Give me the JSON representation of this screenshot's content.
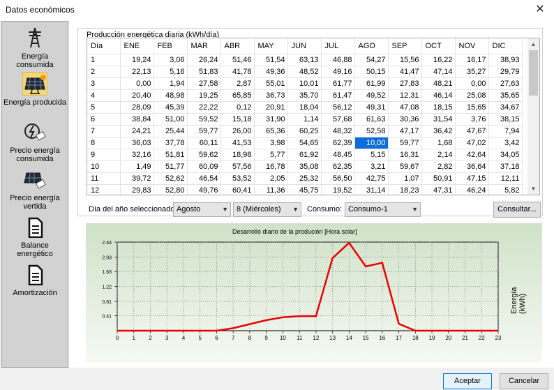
{
  "window": {
    "title": "Datos económicos",
    "close_glyph": "✕"
  },
  "sidebar": {
    "items": [
      {
        "label": "Energía consumida",
        "icon": "power-tower-icon",
        "selected": false
      },
      {
        "label": "Energía producida",
        "icon": "solar-panel-icon",
        "selected": true
      },
      {
        "label": "Precio energía consumida",
        "icon": "power-price-icon",
        "selected": false
      },
      {
        "label": "Precio energía vertida",
        "icon": "solar-price-icon",
        "selected": false
      },
      {
        "label": "Balance energético",
        "icon": "document-icon",
        "selected": false
      },
      {
        "label": "Amortización",
        "icon": "document-icon",
        "selected": false
      }
    ]
  },
  "production": {
    "group_title": "Producción energética diaria (kWh/día)",
    "columns": [
      "Día",
      "ENE",
      "FEB",
      "MAR",
      "ABR",
      "MAY",
      "JUN",
      "JUL",
      "AGO",
      "SEP",
      "OCT",
      "NOV",
      "DIC"
    ],
    "rows": [
      [
        "1",
        "19,24",
        "3,06",
        "26,24",
        "51,46",
        "51,54",
        "63,13",
        "46,88",
        "54,27",
        "15,56",
        "16,22",
        "16,17",
        "38,93"
      ],
      [
        "2",
        "22,13",
        "5,16",
        "51,83",
        "41,78",
        "49,36",
        "48,52",
        "49,16",
        "50,15",
        "41,47",
        "47,14",
        "35,27",
        "29,79"
      ],
      [
        "3",
        "0,00",
        "1,94",
        "27,58",
        "2,87",
        "55,01",
        "10,01",
        "61,77",
        "61,99",
        "27,83",
        "48,21",
        "0,00",
        "27,63"
      ],
      [
        "4",
        "20,40",
        "48,98",
        "19,25",
        "65,85",
        "36,73",
        "35,70",
        "61,47",
        "49,52",
        "12,31",
        "46,14",
        "25,08",
        "35,65"
      ],
      [
        "5",
        "28,09",
        "45,39",
        "22,22",
        "0,12",
        "20,91",
        "18,04",
        "56,12",
        "49,31",
        "47,08",
        "18,15",
        "15,65",
        "34,67"
      ],
      [
        "6",
        "38,84",
        "51,00",
        "59,52",
        "15,18",
        "31,90",
        "1,14",
        "57,68",
        "61,63",
        "30,36",
        "31,54",
        "3,76",
        "38,15"
      ],
      [
        "7",
        "24,21",
        "25,44",
        "59,77",
        "26,00",
        "65,36",
        "60,25",
        "48,32",
        "52,58",
        "47,17",
        "36,42",
        "47,67",
        "7,94"
      ],
      [
        "8",
        "36,03",
        "37,78",
        "60,11",
        "41,53",
        "3,98",
        "54,65",
        "62,39",
        "10,00",
        "59,77",
        "1,68",
        "47,02",
        "3,42"
      ],
      [
        "9",
        "32,16",
        "51,81",
        "59,62",
        "18,98",
        "5,77",
        "61,92",
        "48,45",
        "5,15",
        "16,31",
        "2,14",
        "42,64",
        "34,05"
      ],
      [
        "10",
        "1,49",
        "51,77",
        "60,09",
        "57,56",
        "16,78",
        "35,08",
        "62,35",
        "3,21",
        "59,67",
        "2,82",
        "36,64",
        "37,18"
      ],
      [
        "11",
        "39,72",
        "52,62",
        "46,54",
        "53,52",
        "2,05",
        "25,32",
        "56,50",
        "42,75",
        "1,07",
        "50,91",
        "47,15",
        "12,11"
      ],
      [
        "12",
        "29,83",
        "52,80",
        "49,76",
        "60,41",
        "11,36",
        "45,75",
        "19,52",
        "31,14",
        "18,23",
        "47,31",
        "46,24",
        "5,82"
      ]
    ],
    "selected_cell": {
      "row": 8,
      "col": "AGO"
    }
  },
  "controls": {
    "day_label": "Día del año seleccionado:",
    "month_value": "Agosto",
    "day_value": "8 (Miércoles)",
    "consumo_label": "Consumo:",
    "consumo_value": "Consumo-1",
    "consultar_label": "Consultar..."
  },
  "chart_data": {
    "type": "line",
    "title": "Desarrollo diario de la produción [Hora solar]",
    "xlabel": "",
    "ylabel": "Energía (kWh)",
    "x": [
      0,
      1,
      2,
      3,
      4,
      5,
      6,
      7,
      8,
      9,
      10,
      11,
      12,
      13,
      14,
      15,
      16,
      17,
      18,
      19,
      20,
      21,
      22,
      23
    ],
    "series": [
      {
        "values": [
          0,
          0,
          0,
          0,
          0,
          0,
          0,
          0.07,
          0.18,
          0.29,
          0.37,
          0.4,
          0.4,
          2.0,
          2.42,
          1.77,
          1.87,
          0.19,
          0,
          0,
          0,
          0,
          0,
          0
        ]
      }
    ],
    "y_ticks": [
      "0.41",
      "0.81",
      "1.22",
      "1.63",
      "2.03",
      "2.44"
    ],
    "ylim": [
      0,
      2.44
    ],
    "xlim": [
      0,
      23
    ],
    "grid": true,
    "line_color": "#e80000"
  },
  "footer": {
    "accept_label": "Aceptar",
    "cancel_label": "Cancelar"
  }
}
